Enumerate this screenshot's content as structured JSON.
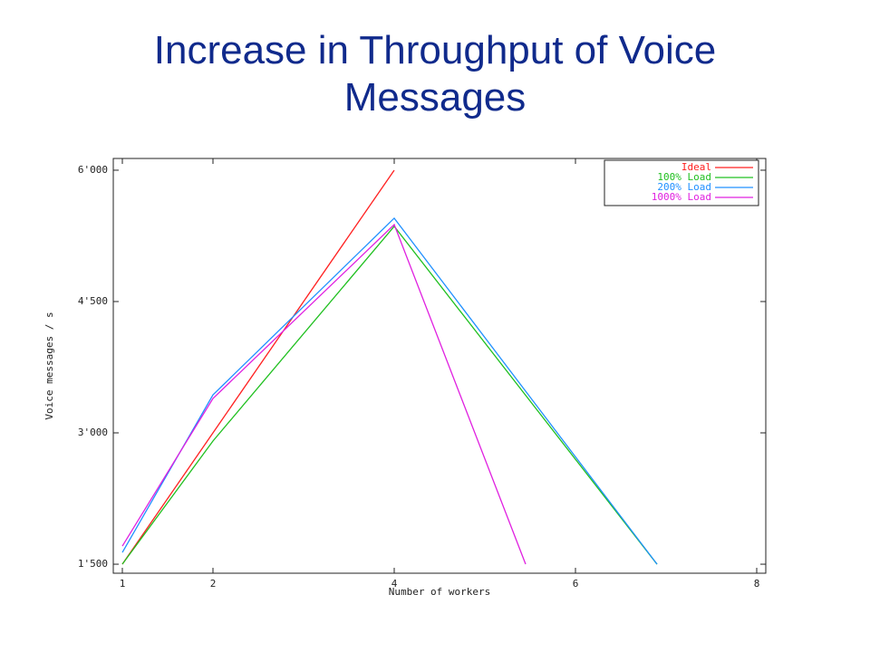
{
  "chart_data": {
    "type": "line",
    "title": "Increase in Throughput of Voice Messages",
    "xlabel": "Number of workers",
    "ylabel": "Voice messages / s",
    "xlim": [
      0.9,
      8.1
    ],
    "ylim": [
      1397,
      6134
    ],
    "xticks": [
      1,
      2,
      4,
      6,
      8
    ],
    "yticks": [
      {
        "value": 1500,
        "label": "1'500"
      },
      {
        "value": 3000,
        "label": "3'000"
      },
      {
        "value": 4500,
        "label": "4'500"
      },
      {
        "value": 6000,
        "label": "6'000"
      }
    ],
    "legend": "upper right",
    "series": [
      {
        "name": "Ideal",
        "color": "#ff2020",
        "x": [
          1,
          2,
          4
        ],
        "values": [
          1500,
          3000,
          6000
        ]
      },
      {
        "name": "100% Load",
        "color": "#20c020",
        "x": [
          1,
          2,
          4,
          6.9
        ],
        "values": [
          1500,
          2907,
          5359,
          1500
        ]
      },
      {
        "name": "200% Load",
        "color": "#2090ff",
        "x": [
          1,
          2,
          4,
          6.9
        ],
        "values": [
          1634,
          3434,
          5452,
          1500
        ]
      },
      {
        "name": "1000% Load",
        "color": "#e020e0",
        "x": [
          1,
          2,
          4,
          5.45
        ],
        "values": [
          1707,
          3393,
          5379,
          1500
        ]
      }
    ]
  }
}
